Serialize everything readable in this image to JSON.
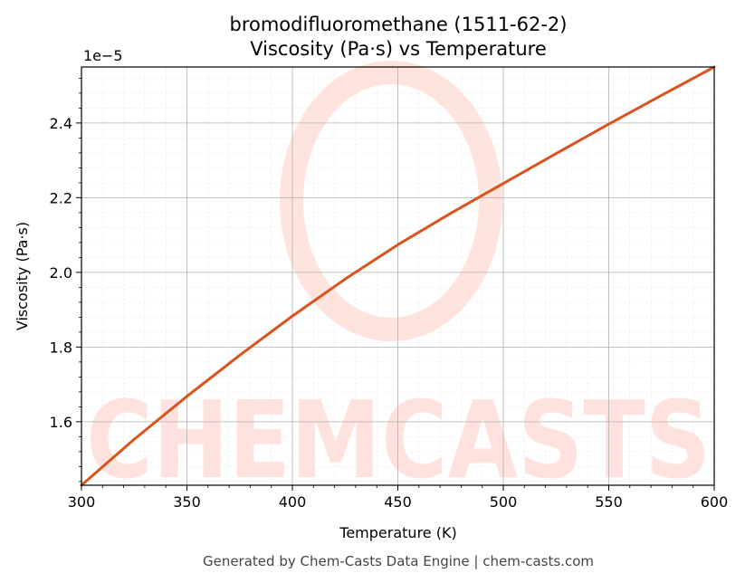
{
  "chart_data": {
    "type": "line",
    "title": "bromodifluoromethane (1511-62-2)",
    "subtitle": "Viscosity (Pa·s) vs Temperature",
    "xlabel": "Temperature (K)",
    "ylabel": "Viscosity (Pa·s)",
    "y_offset_label": "1e−5",
    "xlim": [
      300,
      600
    ],
    "ylim": [
      1.43,
      2.55
    ],
    "xticks": [
      300,
      350,
      400,
      450,
      500,
      550,
      600
    ],
    "xtick_labels": [
      "300",
      "350",
      "400",
      "450",
      "500",
      "550",
      "600"
    ],
    "yticks": [
      1.6,
      1.8,
      2.0,
      2.2,
      2.4
    ],
    "ytick_labels": [
      "1.6",
      "1.8",
      "2.0",
      "2.2",
      "2.4"
    ],
    "grid": true,
    "series": [
      {
        "color": "#d9531e",
        "x": [
          300,
          325,
          350,
          375,
          400,
          425,
          450,
          475,
          500,
          525,
          550,
          575,
          600
        ],
        "y": [
          1.43,
          1.553,
          1.668,
          1.778,
          1.883,
          1.982,
          2.074,
          2.158,
          2.238,
          2.318,
          2.397,
          2.474,
          2.55
        ]
      }
    ]
  },
  "watermark": {
    "text": "CHEMCASTS",
    "color": "#ffd9d2"
  },
  "footer": {
    "text": "Generated by Chem-Casts Data Engine | chem-casts.com"
  }
}
